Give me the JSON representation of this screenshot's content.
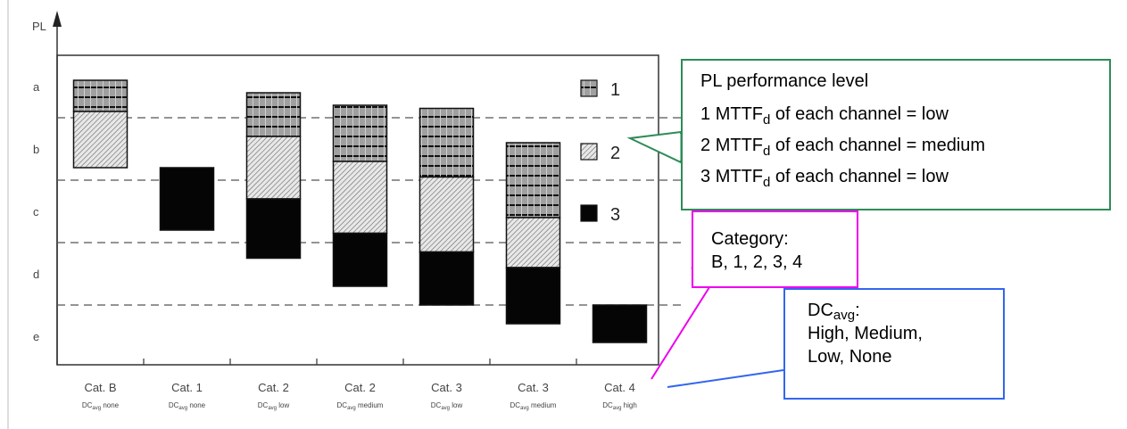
{
  "chart_data": {
    "type": "bar",
    "title": "",
    "ylabel": "PL",
    "xlabel": "",
    "y_levels": [
      "a",
      "b",
      "c",
      "d",
      "e"
    ],
    "ylim": [
      0,
      5
    ],
    "y_note": "0 = top of level a, 5 = bottom of level e; dashed lines at level boundaries",
    "categories": [
      {
        "cat": "Cat. B",
        "dc": "none"
      },
      {
        "cat": "Cat. 1",
        "dc": "none"
      },
      {
        "cat": "Cat. 2",
        "dc": "low"
      },
      {
        "cat": "Cat. 2",
        "dc": "medium"
      },
      {
        "cat": "Cat. 3",
        "dc": "low"
      },
      {
        "cat": "Cat. 3",
        "dc": "medium"
      },
      {
        "cat": "Cat. 4",
        "dc": "high"
      }
    ],
    "dc_prefix": "DC",
    "dc_sub": "avg",
    "segments": [
      [
        {
          "s": 1,
          "from": 0.4,
          "to": 0.9
        },
        {
          "s": 2,
          "from": 0.9,
          "to": 1.8
        }
      ],
      [
        {
          "s": 3,
          "from": 1.8,
          "to": 2.8
        }
      ],
      [
        {
          "s": 1,
          "from": 0.6,
          "to": 1.3
        },
        {
          "s": 2,
          "from": 1.3,
          "to": 2.3
        },
        {
          "s": 3,
          "from": 2.3,
          "to": 3.25
        }
      ],
      [
        {
          "s": 1,
          "from": 0.8,
          "to": 1.7
        },
        {
          "s": 2,
          "from": 1.7,
          "to": 2.85
        },
        {
          "s": 3,
          "from": 2.85,
          "to": 3.7
        }
      ],
      [
        {
          "s": 1,
          "from": 0.85,
          "to": 1.95
        },
        {
          "s": 2,
          "from": 1.95,
          "to": 3.15
        },
        {
          "s": 3,
          "from": 3.15,
          "to": 4.0
        }
      ],
      [
        {
          "s": 1,
          "from": 1.4,
          "to": 2.6
        },
        {
          "s": 2,
          "from": 2.6,
          "to": 3.4
        },
        {
          "s": 3,
          "from": 3.4,
          "to": 4.3
        }
      ],
      [
        {
          "s": 3,
          "from": 4.0,
          "to": 4.6
        }
      ]
    ],
    "legend": [
      {
        "key": "1",
        "style": "grid"
      },
      {
        "key": "2",
        "style": "hatch"
      },
      {
        "key": "3",
        "style": "solid"
      }
    ],
    "grid": "dashed horizontal lines",
    "legend_position": "right inside plot"
  },
  "annotations": {
    "pl_box": {
      "title": "PL performance level",
      "lines": [
        {
          "num": "1",
          "pre": "MTTF",
          "sub": "d",
          "post": " of each channel = low"
        },
        {
          "num": "2",
          "pre": "MTTF",
          "sub": "d",
          "post": " of each channel = medium"
        },
        {
          "num": "3",
          "pre": "MTTF",
          "sub": "d",
          "post": " of each channel = low"
        }
      ]
    },
    "category_box": {
      "line1": "Category:",
      "line2": "B, 1, 2, 3, 4"
    },
    "dc_box": {
      "pre": "DC",
      "sub": "avg",
      "post": ":",
      "line2": "High, Medium,",
      "line3": "Low, None"
    }
  },
  "colors": {
    "pl_border": "#2e8b57",
    "cat_border": "#ee00ee",
    "dc_border": "#3366ee"
  }
}
